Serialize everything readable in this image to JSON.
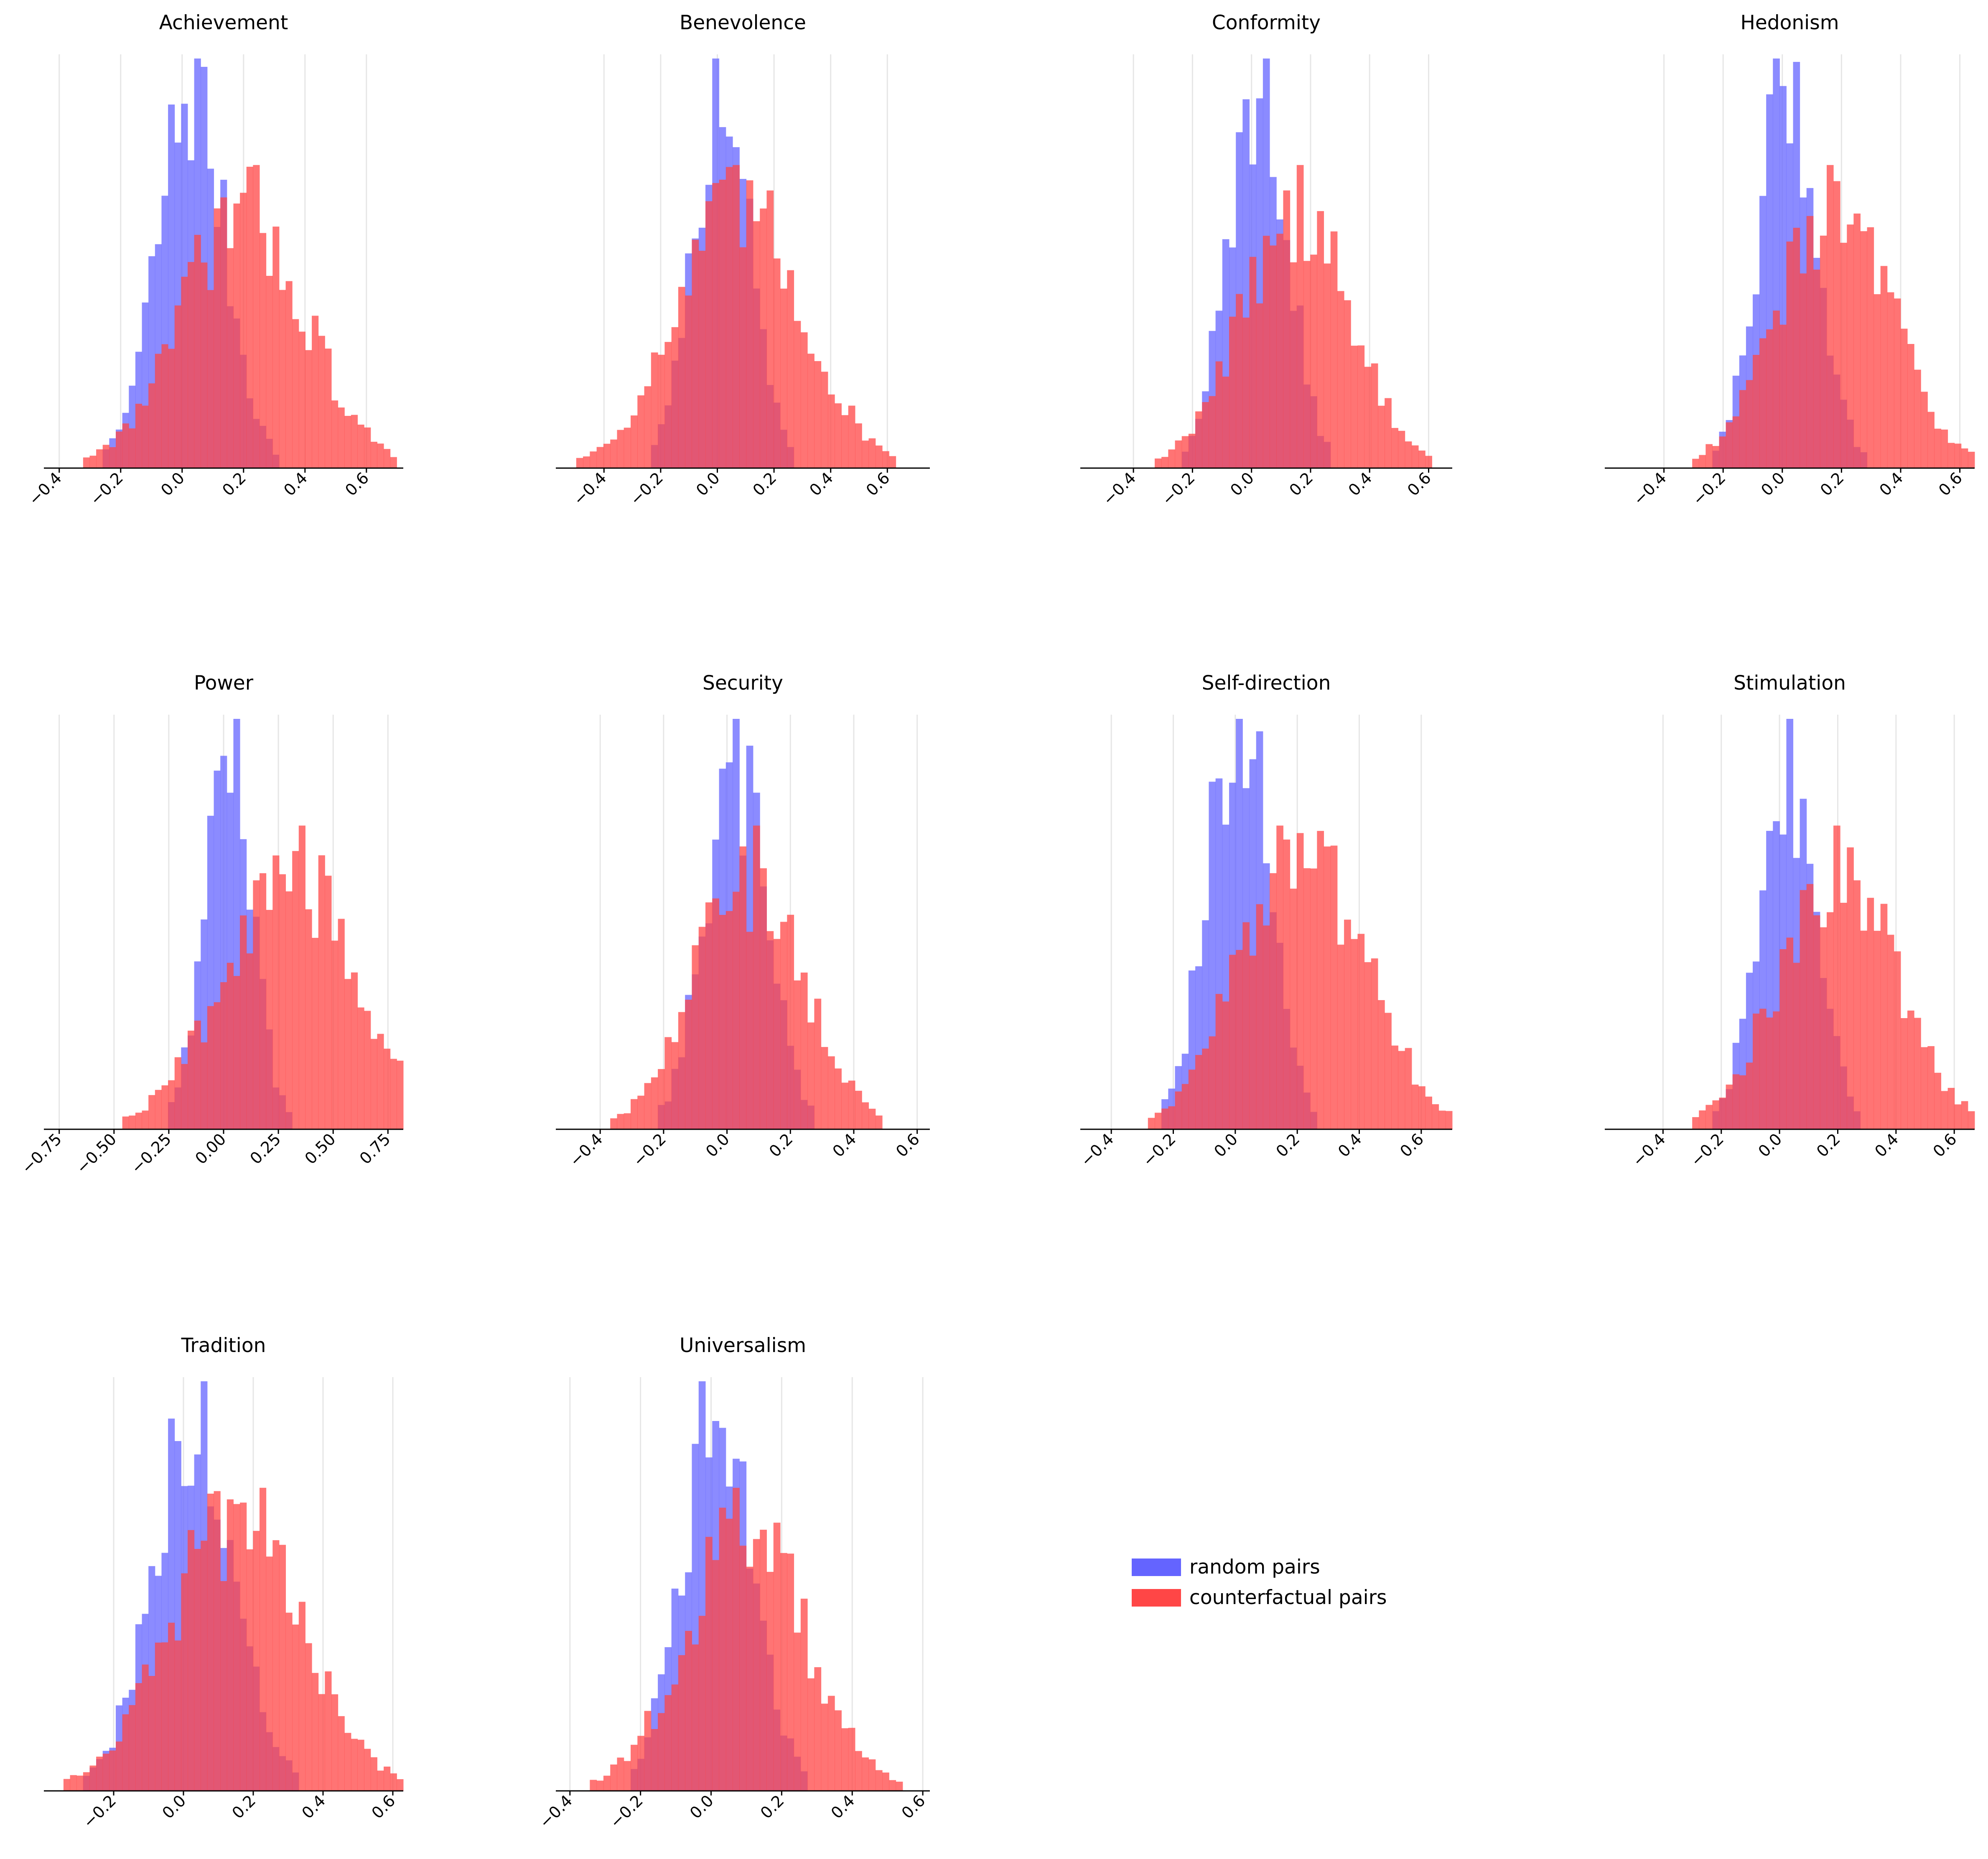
{
  "colors": {
    "random": "#6464ff",
    "counterfactual": "#ff4646",
    "grid": "#e6e6e6"
  },
  "legend": {
    "position": "center-right",
    "items": [
      {
        "label": "random pairs",
        "color_key": "random"
      },
      {
        "label": "counterfactual pairs",
        "color_key": "counterfactual"
      }
    ]
  },
  "chart_data": [
    {
      "type": "histogram",
      "title": "Achievement",
      "xlim": [
        -0.45,
        0.72
      ],
      "grid": "x",
      "x_ticks": [
        -0.4,
        -0.2,
        0.0,
        0.2,
        0.4,
        0.6
      ],
      "x_tick_labels": [
        "−0.4",
        "−0.2",
        "0.0",
        "0.2",
        "0.4",
        "0.6"
      ],
      "series": [
        {
          "name": "random pairs",
          "color_key": "random",
          "mean": 0.03,
          "sd": 0.11
        },
        {
          "name": "counterfactual pairs",
          "color_key": "counterfactual",
          "mean": 0.2,
          "sd": 0.2
        }
      ]
    },
    {
      "type": "histogram",
      "title": "Benevolence",
      "xlim": [
        -0.57,
        0.75
      ],
      "grid": "x",
      "x_ticks": [
        -0.4,
        -0.2,
        0.0,
        0.2,
        0.4,
        0.6
      ],
      "x_tick_labels": [
        "−0.4",
        "−0.2",
        "0.0",
        "0.2",
        "0.4",
        "0.6"
      ],
      "series": [
        {
          "name": "random pairs",
          "color_key": "random",
          "mean": 0.02,
          "sd": 0.1
        },
        {
          "name": "counterfactual pairs",
          "color_key": "counterfactual",
          "mean": 0.08,
          "sd": 0.22
        }
      ]
    },
    {
      "type": "histogram",
      "title": "Conformity",
      "xlim": [
        -0.58,
        0.68
      ],
      "grid": "x",
      "x_ticks": [
        -0.4,
        -0.2,
        0.0,
        0.2,
        0.4,
        0.6
      ],
      "x_tick_labels": [
        "−0.4",
        "−0.2",
        "0.0",
        "0.2",
        "0.4",
        "0.6"
      ],
      "series": [
        {
          "name": "random pairs",
          "color_key": "random",
          "mean": 0.02,
          "sd": 0.1
        },
        {
          "name": "counterfactual pairs",
          "color_key": "counterfactual",
          "mean": 0.15,
          "sd": 0.18
        }
      ]
    },
    {
      "type": "histogram",
      "title": "Hedonism",
      "xlim": [
        -0.6,
        0.65
      ],
      "grid": "x",
      "x_ticks": [
        -0.4,
        -0.2,
        0.0,
        0.2,
        0.4,
        0.6
      ],
      "x_tick_labels": [
        "−0.4",
        "−0.2",
        "0.0",
        "0.2",
        "0.4",
        "0.6"
      ],
      "series": [
        {
          "name": "random pairs",
          "color_key": "random",
          "mean": 0.02,
          "sd": 0.1
        },
        {
          "name": "counterfactual pairs",
          "color_key": "counterfactual",
          "mean": 0.18,
          "sd": 0.19
        }
      ]
    },
    {
      "type": "histogram",
      "title": "Power",
      "xlim": [
        -0.82,
        0.82
      ],
      "grid": "x",
      "x_ticks": [
        -0.75,
        -0.5,
        -0.25,
        0.0,
        0.25,
        0.5,
        0.75
      ],
      "x_tick_labels": [
        "−0.75",
        "−0.50",
        "−0.25",
        "0.00",
        "0.25",
        "0.50",
        "0.75"
      ],
      "series": [
        {
          "name": "random pairs",
          "color_key": "random",
          "mean": 0.02,
          "sd": 0.11
        },
        {
          "name": "counterfactual pairs",
          "color_key": "counterfactual",
          "mean": 0.3,
          "sd": 0.3
        }
      ]
    },
    {
      "type": "histogram",
      "title": "Security",
      "xlim": [
        -0.54,
        0.64
      ],
      "grid": "x",
      "x_ticks": [
        -0.4,
        -0.2,
        0.0,
        0.2,
        0.4,
        0.6
      ],
      "x_tick_labels": [
        "−0.4",
        "−0.2",
        "0.0",
        "0.2",
        "0.4",
        "0.6"
      ],
      "series": [
        {
          "name": "random pairs",
          "color_key": "random",
          "mean": 0.03,
          "sd": 0.1
        },
        {
          "name": "counterfactual pairs",
          "color_key": "counterfactual",
          "mean": 0.07,
          "sd": 0.17
        }
      ]
    },
    {
      "type": "histogram",
      "title": "Self-direction",
      "xlim": [
        -0.5,
        0.7
      ],
      "grid": "x",
      "x_ticks": [
        -0.4,
        -0.2,
        0.0,
        0.2,
        0.4,
        0.6
      ],
      "x_tick_labels": [
        "−0.4",
        "−0.2",
        "0.0",
        "0.2",
        "0.4",
        "0.6"
      ],
      "series": [
        {
          "name": "random pairs",
          "color_key": "random",
          "mean": 0.01,
          "sd": 0.1
        },
        {
          "name": "counterfactual pairs",
          "color_key": "counterfactual",
          "mean": 0.22,
          "sd": 0.2
        }
      ]
    },
    {
      "type": "histogram",
      "title": "Stimulation",
      "xlim": [
        -0.6,
        0.67
      ],
      "grid": "x",
      "x_ticks": [
        -0.4,
        -0.2,
        0.0,
        0.2,
        0.4,
        0.6
      ],
      "x_tick_labels": [
        "−0.4",
        "−0.2",
        "0.0",
        "0.2",
        "0.4",
        "0.6"
      ],
      "series": [
        {
          "name": "random pairs",
          "color_key": "random",
          "mean": 0.03,
          "sd": 0.1
        },
        {
          "name": "counterfactual pairs",
          "color_key": "counterfactual",
          "mean": 0.2,
          "sd": 0.2
        }
      ]
    },
    {
      "type": "histogram",
      "title": "Tradition",
      "xlim": [
        -0.4,
        0.63
      ],
      "grid": "x",
      "x_ticks": [
        -0.2,
        0.0,
        0.2,
        0.4,
        0.6
      ],
      "x_tick_labels": [
        "−0.2",
        "0.0",
        "0.2",
        "0.4",
        "0.6"
      ],
      "series": [
        {
          "name": "random pairs",
          "color_key": "random",
          "mean": 0.03,
          "sd": 0.12
        },
        {
          "name": "counterfactual pairs",
          "color_key": "counterfactual",
          "mean": 0.15,
          "sd": 0.19
        }
      ]
    },
    {
      "type": "histogram",
      "title": "Universalism",
      "xlim": [
        -0.44,
        0.62
      ],
      "grid": "x",
      "x_ticks": [
        -0.4,
        -0.2,
        0.0,
        0.2,
        0.4,
        0.6
      ],
      "x_tick_labels": [
        "−0.4",
        "−0.2",
        "0.0",
        "0.2",
        "0.4",
        "0.6"
      ],
      "series": [
        {
          "name": "random pairs",
          "color_key": "random",
          "mean": 0.02,
          "sd": 0.1
        },
        {
          "name": "counterfactual pairs",
          "color_key": "counterfactual",
          "mean": 0.1,
          "sd": 0.17
        }
      ]
    }
  ]
}
